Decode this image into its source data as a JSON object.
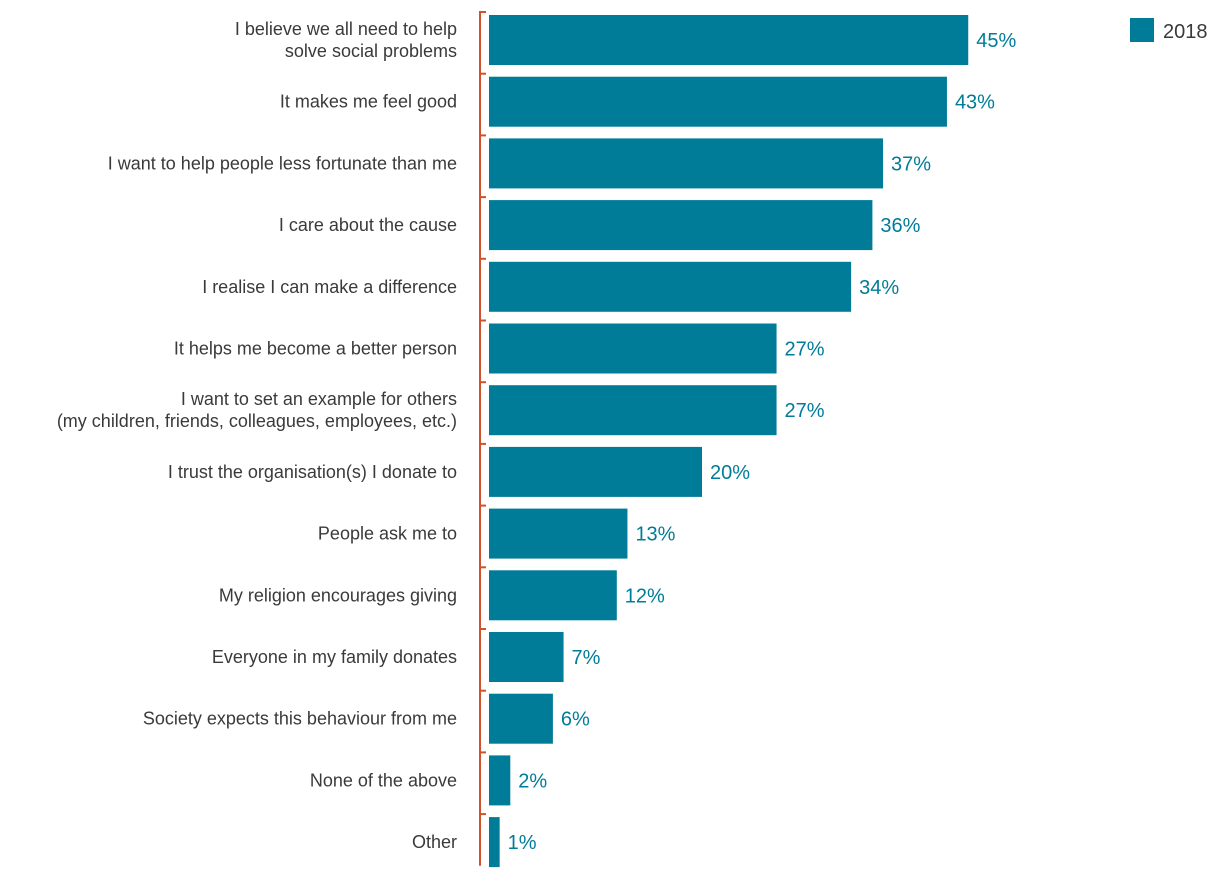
{
  "colors": {
    "bar": "#007c98",
    "axis": "#d2502a",
    "value_text": "#007c98"
  },
  "chart_data": {
    "type": "bar",
    "orientation": "horizontal",
    "title": "",
    "xlabel": "",
    "ylabel": "",
    "xlim": [
      0,
      45
    ],
    "legend_position": "top-right",
    "grid": false,
    "categories": [
      [
        "I believe we all need to help",
        "solve social problems"
      ],
      [
        "It makes me feel good"
      ],
      [
        "I want to help people less fortunate than me"
      ],
      [
        "I care about the cause"
      ],
      [
        "I realise I can make a difference"
      ],
      [
        "It helps me become a better person"
      ],
      [
        "I want to set an example for others",
        "(my children, friends, colleagues, employees, etc.)"
      ],
      [
        "I trust the organisation(s) I donate to"
      ],
      [
        "People ask me to"
      ],
      [
        "My religion encourages giving"
      ],
      [
        "Everyone in my family donates"
      ],
      [
        "Society expects this behaviour from me"
      ],
      [
        "None of the above"
      ],
      [
        "Other"
      ]
    ],
    "series": [
      {
        "name": "2018",
        "values": [
          45,
          43,
          37,
          36,
          34,
          27,
          27,
          20,
          13,
          12,
          7,
          6,
          2,
          1
        ],
        "labels": [
          "45%",
          "43%",
          "37%",
          "36%",
          "34%",
          "27%",
          "27%",
          "20%",
          "13%",
          "12%",
          "7%",
          "6%",
          "2%",
          "1%"
        ]
      }
    ]
  }
}
